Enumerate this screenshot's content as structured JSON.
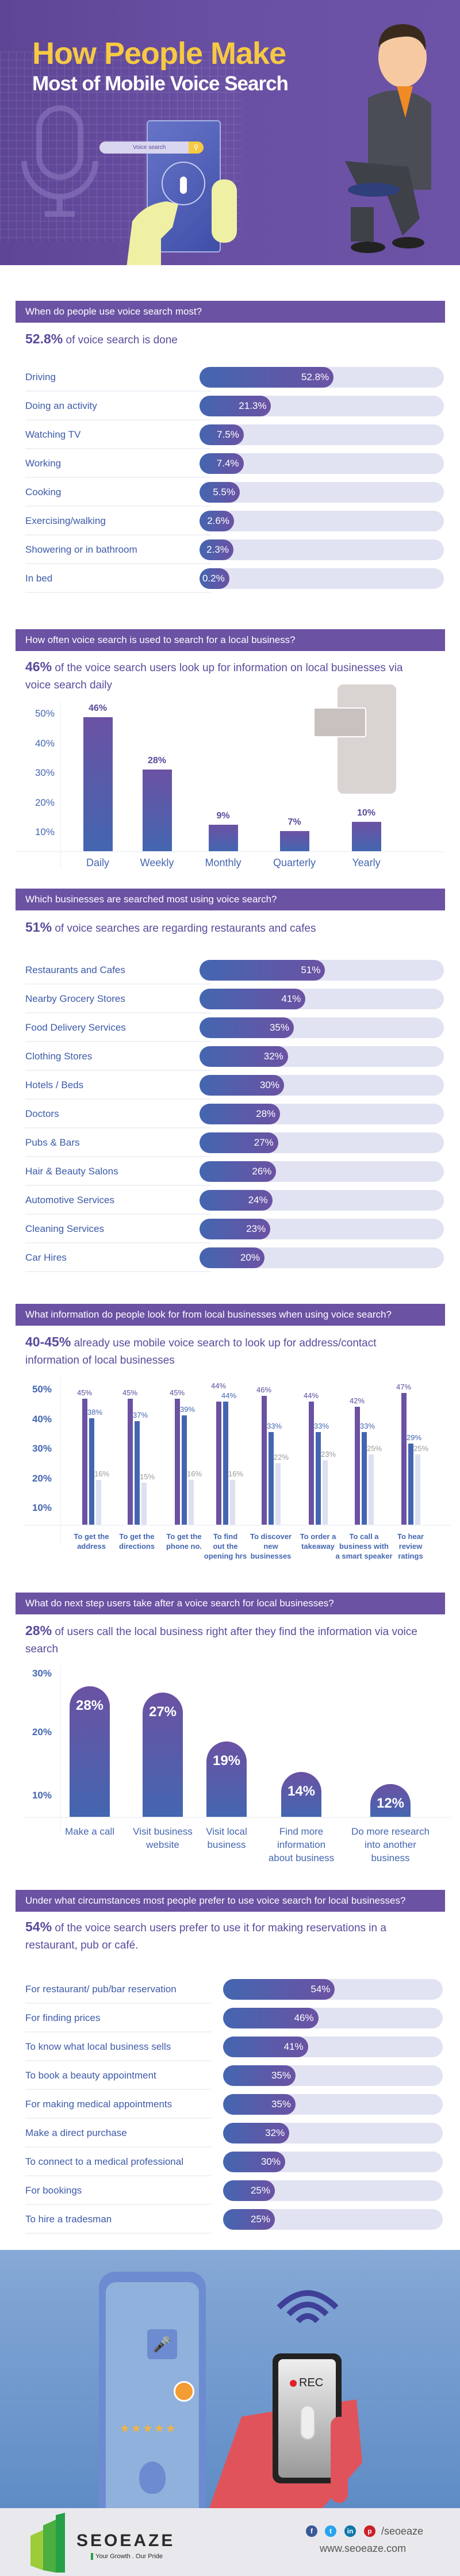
{
  "hero": {
    "title_line1": "How People Make",
    "title_line2": "Most of Mobile Voice Search",
    "search_placeholder": "Voice search"
  },
  "colors": {
    "header": "#6b52a3",
    "accent_yellow": "#f6c943",
    "bar_blue": "#4466b0",
    "bar_purple": "#6b52a3",
    "track": "#e1e3f2",
    "series3": "#dde0f0"
  },
  "sections": [
    {
      "header": "When do people use voice search most?",
      "stat": "52.8%",
      "text": "of voice search is done"
    },
    {
      "header": "How often voice search is used to search for a local business?",
      "stat": "46%",
      "text": "of the voice search users look up for information on local businesses via voice search daily"
    },
    {
      "header": "Which businesses are searched most using voice search?",
      "stat": "51%",
      "text": "of voice searches are regarding restaurants and cafes"
    },
    {
      "header": "What information do people look for from local businesses when using voice search?",
      "stat": "40-45%",
      "text": "already use mobile voice search to look up for address/contact information of local businesses"
    },
    {
      "header": "What do next step users take after a voice search for local businesses?",
      "stat": "28%",
      "text": "of users call the local business right after they find the information via voice search"
    },
    {
      "header": "Under what circumstances most people prefer to use voice search for local businesses?",
      "stat": "54%",
      "text": "of the voice search users prefer to use it for making reservations in a restaurant, pub or café."
    }
  ],
  "chart_data": [
    {
      "type": "bar",
      "orientation": "horizontal",
      "categories": [
        "Driving",
        "Doing an activity",
        "Watching TV",
        "Working",
        "Cooking",
        "Exercising/walking",
        "Showering or in bathroom",
        "In bed"
      ],
      "values": [
        52.8,
        21.3,
        7.5,
        7.4,
        5.5,
        2.6,
        2.3,
        0.2
      ],
      "labels": [
        "52.8%",
        "21.3%",
        "7.5%",
        "7.4%",
        "5.5%",
        "2.6%",
        "2.3%",
        "0.2%"
      ]
    },
    {
      "type": "bar",
      "orientation": "vertical",
      "categories": [
        "Daily",
        "Weekly",
        "Monthly",
        "Quarterly",
        "Yearly"
      ],
      "values": [
        46,
        28,
        9,
        7,
        10
      ],
      "labels": [
        "46%",
        "28%",
        "9%",
        "7%",
        "10%"
      ],
      "yticks": [
        "50%",
        "40%",
        "30%",
        "20%",
        "10%"
      ],
      "ylim": [
        0,
        50
      ],
      "grid": false
    },
    {
      "type": "bar",
      "orientation": "horizontal",
      "categories": [
        "Restaurants and Cafes",
        "Nearby Grocery Stores",
        "Food Delivery Services",
        "Clothing Stores",
        "Hotels / Beds",
        "Doctors",
        "Pubs & Bars",
        "Hair & Beauty Salons",
        "Automotive Services",
        "Cleaning Services",
        "Car Hires"
      ],
      "values": [
        51,
        41,
        35,
        32,
        30,
        28,
        27,
        26,
        24,
        23,
        20
      ],
      "labels": [
        "51%",
        "41%",
        "35%",
        "32%",
        "30%",
        "28%",
        "27%",
        "26%",
        "24%",
        "23%",
        "20%"
      ]
    },
    {
      "type": "bar",
      "orientation": "vertical-grouped",
      "categories": [
        [
          "To get the",
          "address"
        ],
        [
          "To get the",
          "directions"
        ],
        [
          "To get the",
          "phone no."
        ],
        [
          "To find",
          "out the",
          "opening hrs"
        ],
        [
          "To discover",
          "new",
          "businesses"
        ],
        [
          "To order a",
          "takeaway"
        ],
        [
          "To call a",
          "business with",
          "a smart speaker"
        ],
        [
          "To hear",
          "review",
          "ratings"
        ]
      ],
      "series": [
        {
          "values": [
            45,
            45,
            45,
            44,
            46,
            44,
            42,
            47
          ],
          "labels": [
            "45%",
            "45%",
            "45%",
            "44%",
            "46%",
            "44%",
            "42%",
            "47%"
          ],
          "color": "#6b52a3"
        },
        {
          "values": [
            38,
            37,
            39,
            44,
            33,
            33,
            33,
            29
          ],
          "labels": [
            "38%",
            "37%",
            "39%",
            "44%",
            "33%",
            "33%",
            "33%",
            "29%"
          ],
          "color": "#4466b0"
        },
        {
          "values": [
            16,
            15,
            16,
            16,
            22,
            23,
            25,
            25
          ],
          "labels": [
            "16%",
            "15%",
            "16%",
            "16%",
            "22%",
            "23%",
            "25%",
            "25%"
          ],
          "color": "#dde0f0"
        }
      ],
      "yticks": [
        "50%",
        "40%",
        "30%",
        "20%",
        "10%"
      ],
      "ylim": [
        0,
        50
      ],
      "grid": false
    },
    {
      "type": "bar",
      "orientation": "vertical",
      "categories": [
        [
          "Make a call"
        ],
        [
          "Visit business",
          "website"
        ],
        [
          "Visit local",
          "business"
        ],
        [
          "Find more",
          "information",
          "about business"
        ],
        [
          "Do more research",
          "into another",
          "business"
        ]
      ],
      "values": [
        28,
        27,
        19,
        14,
        12
      ],
      "labels": [
        "28%",
        "27%",
        "19%",
        "14%",
        "12%"
      ],
      "yticks": [
        "30%",
        "20%",
        "10%"
      ],
      "ylim": [
        0,
        30
      ],
      "grid": false
    },
    {
      "type": "bar",
      "orientation": "horizontal",
      "categories": [
        "For restaurant/ pub/bar reservation",
        "For finding prices",
        "To know what local business sells",
        "To book a beauty appointment",
        "For making medical appointments",
        "Make a direct purchase",
        "To connect to a medical professional",
        "For bookings",
        "To hire a tradesman"
      ],
      "values": [
        54,
        46,
        41,
        35,
        35,
        32,
        30,
        25,
        25
      ],
      "labels": [
        "54%",
        "46%",
        "41%",
        "35%",
        "35%",
        "32%",
        "30%",
        "25%",
        "25%"
      ]
    }
  ],
  "illustration": {
    "rec_label": "REC"
  },
  "footer": {
    "brand": "SEOEAZE",
    "tagline": "Your Growth . Our Pride",
    "social_handle": "/seoeaze",
    "website": "www.seoeaze.com",
    "social_icons": [
      "facebook-icon",
      "twitter-icon",
      "linkedin-icon",
      "pinterest-icon"
    ]
  }
}
